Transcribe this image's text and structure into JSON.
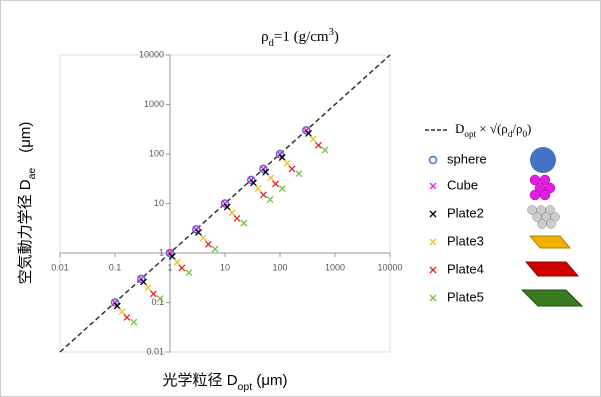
{
  "chart_data": {
    "type": "scatter",
    "title": [
      "ρ",
      "d",
      "=1 (g/cm",
      "3",
      ")"
    ],
    "xlabel": [
      "光学粒径 D",
      "opt",
      " (μm)"
    ],
    "ylabel": [
      "空気動力学径 D",
      "ae",
      "　(μm)"
    ],
    "log_x": true,
    "log_y": true,
    "xlim": [
      0.01,
      10000
    ],
    "ylim": [
      0.01,
      10000
    ],
    "xticks": [
      0.01,
      0.1,
      1,
      10,
      100,
      1000,
      10000
    ],
    "yticks": [
      0.01,
      0.1,
      1,
      10,
      100,
      1000,
      10000
    ],
    "reference_line": {
      "name": [
        "D",
        "opt",
        " × √(ρ",
        "d",
        "/ρ",
        "0",
        ")"
      ],
      "x": [
        0.01,
        10000
      ],
      "y": [
        0.01,
        10000
      ],
      "color": "#333333"
    },
    "series": [
      {
        "name": "sphere",
        "color": "#4472c4",
        "marker": "circle",
        "x": [
          0.1,
          0.3,
          1,
          3,
          10,
          30,
          50,
          100,
          300
        ],
        "values": [
          0.1,
          0.3,
          1,
          3,
          10,
          30,
          50,
          100,
          300
        ]
      },
      {
        "name": "Cube",
        "color": "#e020e0",
        "marker": "x",
        "x": [
          0.1,
          0.3,
          1,
          3,
          10,
          30,
          50,
          100,
          300
        ],
        "values": [
          0.1,
          0.3,
          1,
          3,
          10,
          30,
          50,
          100,
          300
        ]
      },
      {
        "name": "Plate2",
        "color": "#000000",
        "marker": "x",
        "x": [
          0.11,
          0.33,
          1.1,
          3.3,
          11,
          33,
          55,
          110,
          330
        ],
        "values": [
          0.085,
          0.26,
          0.85,
          2.6,
          8.5,
          26,
          43,
          85,
          260
        ]
      },
      {
        "name": "Plate3",
        "color": "#f0c020",
        "marker": "x",
        "x": [
          0.135,
          0.4,
          1.35,
          4,
          13.5,
          40,
          68,
          135,
          400
        ],
        "values": [
          0.065,
          0.2,
          0.65,
          2,
          6.5,
          20,
          33,
          65,
          200
        ]
      },
      {
        "name": "Plate4",
        "color": "#e02020",
        "marker": "x",
        "x": [
          0.165,
          0.5,
          1.65,
          5,
          16.5,
          50,
          83,
          165,
          500
        ],
        "values": [
          0.05,
          0.15,
          0.5,
          1.5,
          5,
          15,
          25,
          50,
          150
        ]
      },
      {
        "name": "Plate5",
        "color": "#70c040",
        "marker": "x",
        "x": [
          0.22,
          0.66,
          2.2,
          6.6,
          22,
          66,
          110,
          220,
          660
        ],
        "values": [
          0.04,
          0.12,
          0.4,
          1.2,
          4,
          12,
          20,
          40,
          120
        ]
      }
    ]
  }
}
